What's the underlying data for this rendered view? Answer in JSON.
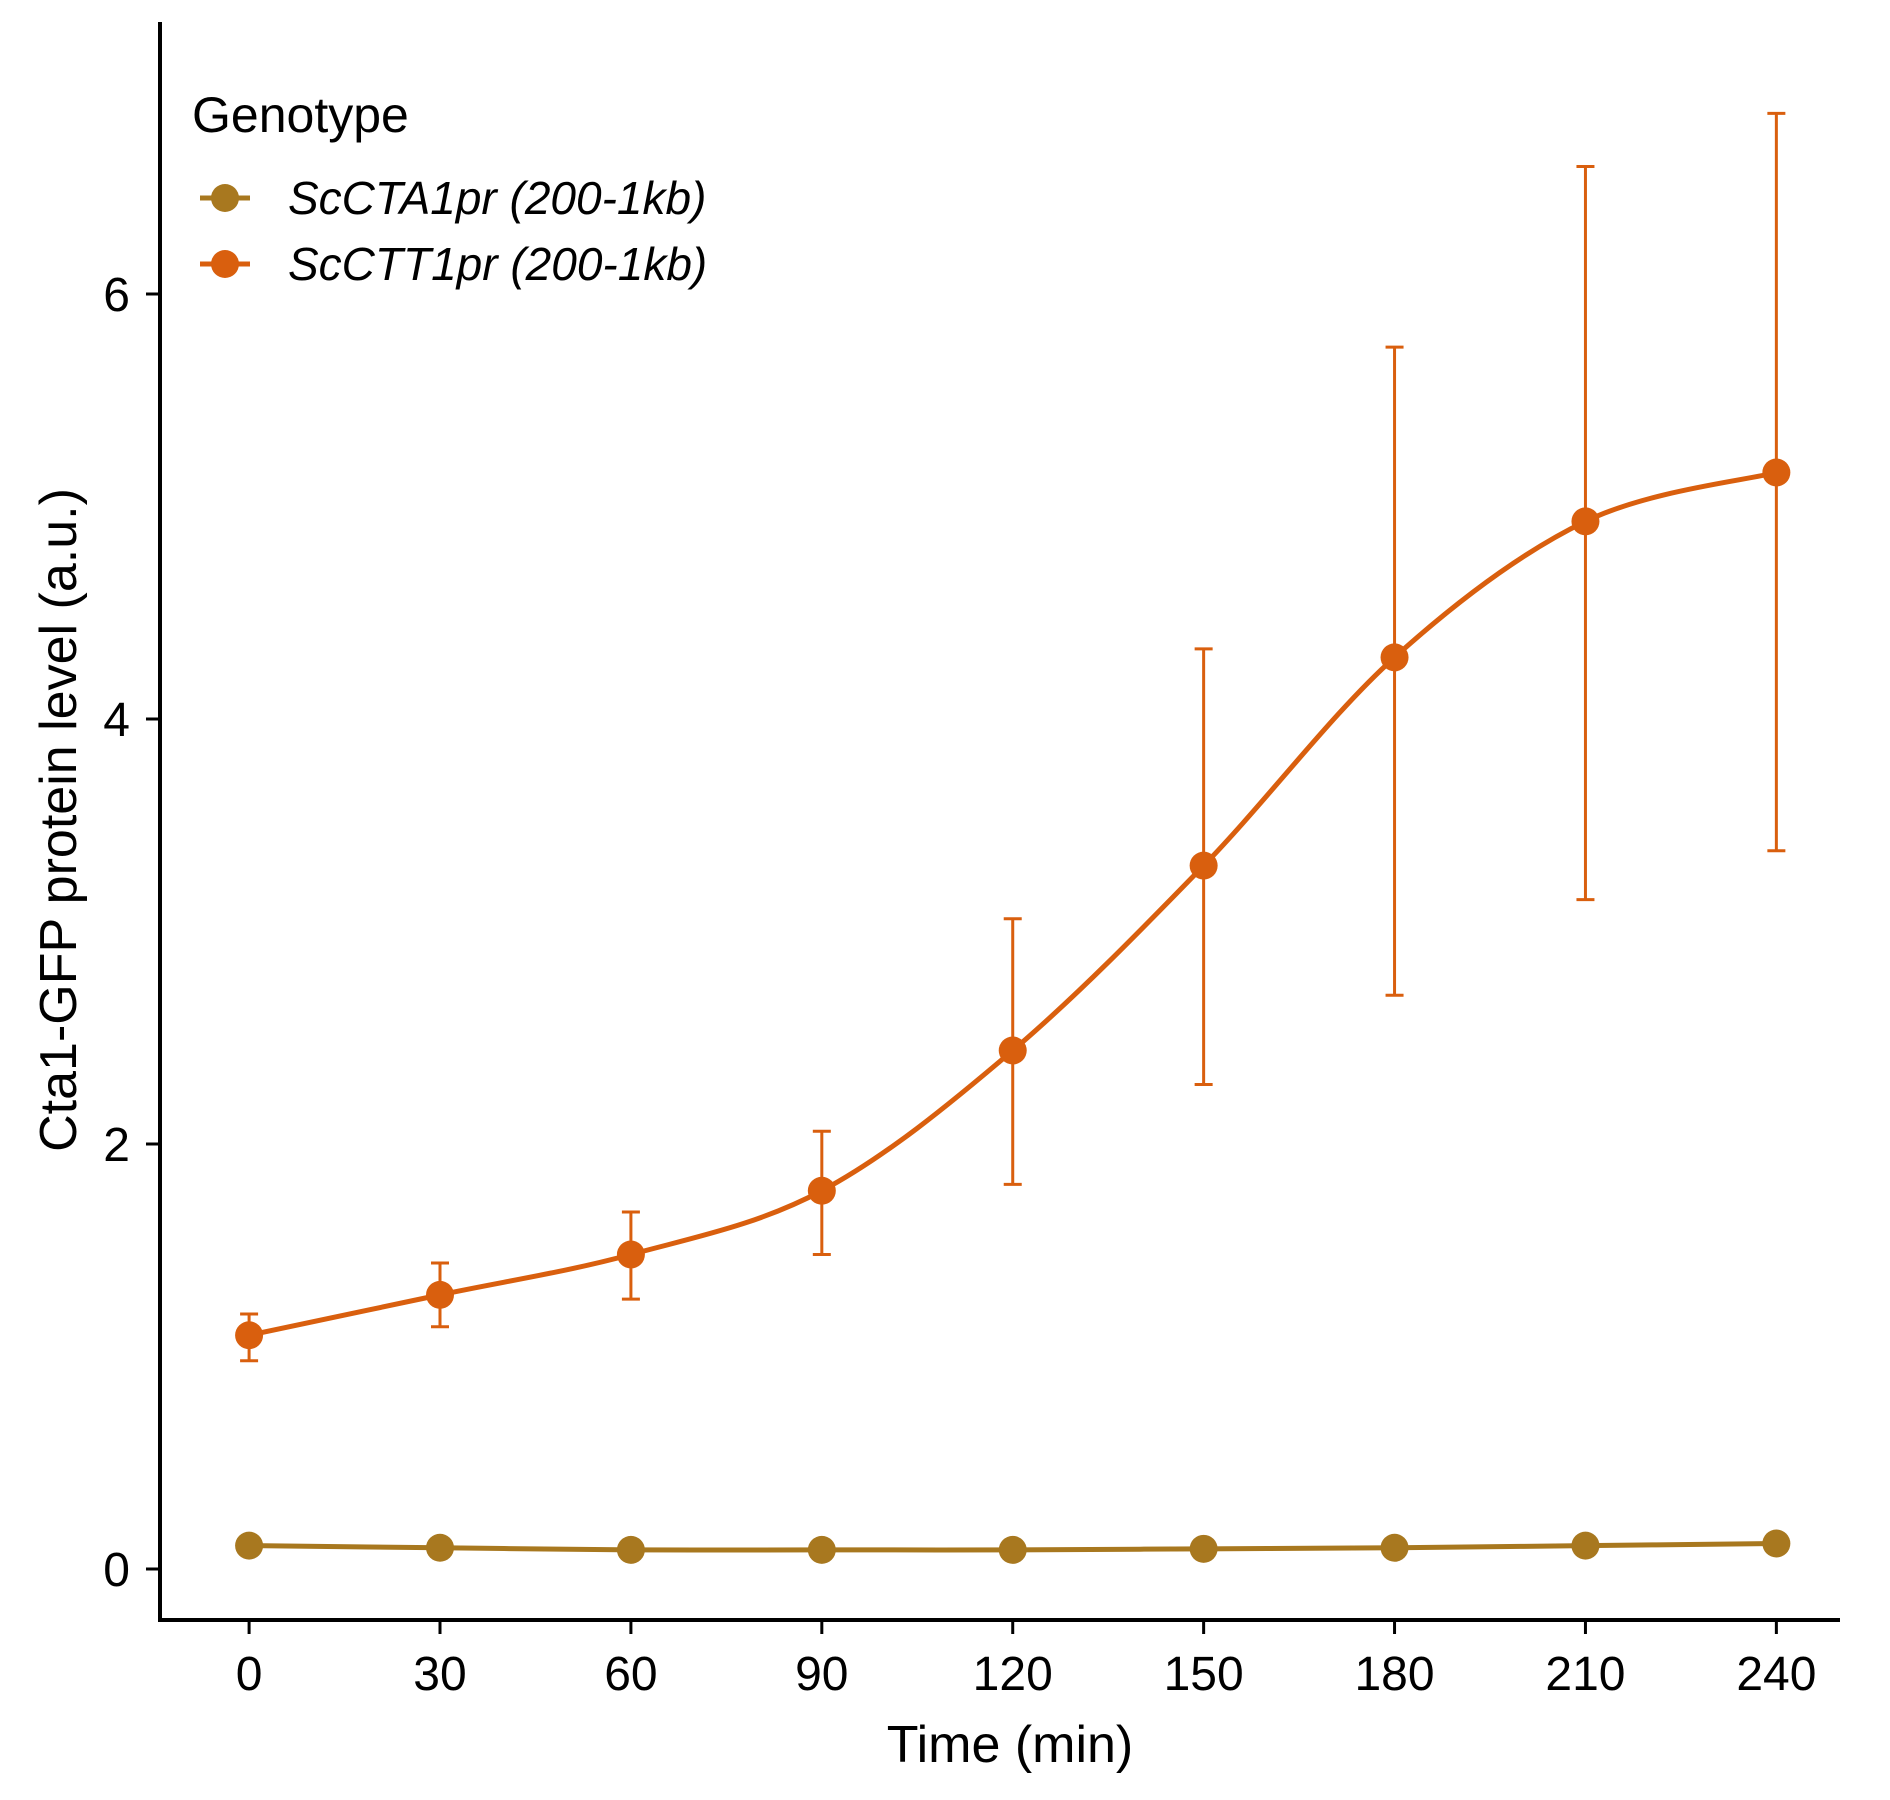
{
  "chart_data": {
    "type": "line",
    "xlabel": "Time (min)",
    "ylabel": "Cta1-GFP protein level (a.u.)",
    "x": [
      0,
      30,
      60,
      90,
      120,
      150,
      180,
      210,
      240
    ],
    "xticks": [
      0,
      30,
      60,
      90,
      120,
      150,
      180,
      210,
      240
    ],
    "yticks": [
      0,
      2,
      4,
      6
    ],
    "xlim": [
      -14,
      250
    ],
    "ylim": [
      -0.24,
      7.28
    ],
    "grid": false,
    "legend": {
      "title": "Genotype",
      "position": "top-left"
    },
    "series": [
      {
        "name": "ScCTA1pr (200-1kb)",
        "color": "#A8781F",
        "values": [
          0.11,
          0.1,
          0.09,
          0.09,
          0.09,
          0.095,
          0.1,
          0.11,
          0.12
        ],
        "error_low": [
          0.11,
          0.1,
          0.09,
          0.09,
          0.09,
          0.095,
          0.1,
          0.11,
          0.12
        ],
        "error_high": [
          0.11,
          0.1,
          0.09,
          0.09,
          0.09,
          0.095,
          0.1,
          0.11,
          0.12
        ]
      },
      {
        "name": "ScCTT1pr (200-1kb)",
        "color": "#D95F0E",
        "values": [
          1.1,
          1.29,
          1.48,
          1.78,
          2.44,
          3.31,
          4.29,
          4.93,
          5.16
        ],
        "error_low": [
          0.98,
          1.14,
          1.27,
          1.48,
          1.81,
          2.28,
          2.7,
          3.15,
          3.38
        ],
        "error_high": [
          1.2,
          1.44,
          1.68,
          2.06,
          3.06,
          4.33,
          5.75,
          6.6,
          6.85
        ]
      }
    ]
  }
}
